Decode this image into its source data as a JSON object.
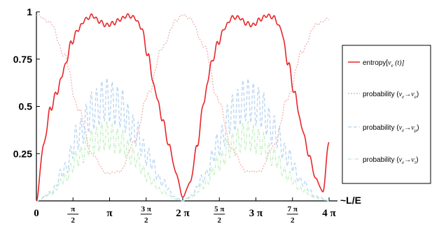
{
  "chart_data": {
    "type": "line",
    "title": "",
    "xlabel": "~L/E",
    "ylabel": "",
    "xlim": [
      0,
      12.566
    ],
    "ylim": [
      0,
      1
    ],
    "grid": false,
    "legend_position": "right",
    "y_ticks": [
      {
        "value": 0.25,
        "label": "0.25"
      },
      {
        "value": 0.5,
        "label": "0.5"
      },
      {
        "value": 0.75,
        "label": "0.75"
      },
      {
        "value": 1,
        "label": "1"
      }
    ],
    "x_ticks": [
      {
        "value": 0,
        "label": "0"
      },
      {
        "value": 1.5708,
        "num": "π",
        "den": "2"
      },
      {
        "value": 3.1416,
        "label": "π"
      },
      {
        "value": 4.7124,
        "num": "3 π",
        "den": "2"
      },
      {
        "value": 6.2832,
        "label": "2 π"
      },
      {
        "value": 7.854,
        "num": "5 π",
        "den": "2"
      },
      {
        "value": 9.4248,
        "label": "3 π"
      },
      {
        "value": 10.9956,
        "num": "7 π",
        "den": "2"
      },
      {
        "value": 12.5664,
        "label": "4 π"
      }
    ],
    "legend": [
      {
        "main": "entropy[",
        "sym": "ν",
        "sub": "e",
        "tail": "(t)]",
        "color": "#e8262a",
        "style": "solid"
      },
      {
        "main": "probability (",
        "sym": "ν",
        "sub": "e",
        "arrow": "→",
        "sym2": "ν",
        "sub2": "e",
        "tail": ")",
        "color": "#f4b4b4",
        "style": "dotted"
      },
      {
        "main": "probability (",
        "sym": "ν",
        "sub": "e",
        "arrow": "→",
        "sym2": "ν",
        "sub2": "μ",
        "tail": ")",
        "color": "#bcd8f2",
        "style": "dashed"
      },
      {
        "main": "probability (",
        "sym": "ν",
        "sub": "e",
        "arrow": "→",
        "sym2": "ν",
        "sub2": "τ",
        "tail": ")",
        "color": "#c4f0c4",
        "style": "dashdot"
      }
    ],
    "series": [
      {
        "key": "entropy",
        "color": "#e8262a",
        "x": [
          0,
          0.3,
          0.6,
          0.9,
          1.2,
          1.5,
          1.8,
          2.1,
          2.4,
          2.7,
          3.0,
          3.3,
          3.6,
          3.9,
          4.2,
          4.5,
          4.8,
          5.1,
          5.4,
          5.7,
          6.0,
          6.28,
          6.6,
          6.9,
          7.2,
          7.5,
          7.8,
          8.1,
          8.4,
          8.7,
          9.0,
          9.3,
          9.6,
          9.9,
          10.2,
          10.5,
          10.8,
          11.1,
          11.4,
          11.7,
          12.0,
          12.3,
          12.57
        ],
        "y": [
          0.0,
          0.3,
          0.5,
          0.6,
          0.72,
          0.85,
          0.92,
          0.97,
          0.99,
          0.96,
          0.94,
          0.95,
          0.97,
          0.99,
          0.98,
          0.93,
          0.78,
          0.6,
          0.45,
          0.3,
          0.15,
          0.02,
          0.1,
          0.3,
          0.55,
          0.74,
          0.85,
          0.93,
          0.98,
          0.98,
          0.95,
          0.94,
          0.97,
          0.99,
          0.98,
          0.92,
          0.75,
          0.58,
          0.4,
          0.25,
          0.12,
          0.05,
          0.33
        ]
      },
      {
        "key": "ee",
        "color": "#f4b4b4",
        "x": [
          0,
          0.6,
          1.2,
          1.8,
          2.4,
          3.0,
          3.6,
          4.2,
          4.8,
          5.4,
          6.0,
          6.28,
          6.6,
          7.2,
          7.8,
          8.4,
          9.0,
          9.6,
          10.2,
          10.8,
          11.4,
          12.0,
          12.57
        ],
        "y": [
          0.99,
          0.95,
          0.78,
          0.5,
          0.25,
          0.15,
          0.16,
          0.32,
          0.58,
          0.82,
          0.96,
          0.99,
          0.97,
          0.83,
          0.55,
          0.28,
          0.16,
          0.16,
          0.3,
          0.56,
          0.8,
          0.94,
          0.97
        ]
      },
      {
        "key": "emu",
        "color": "#bcd8f2",
        "x": [
          0,
          0.6,
          1.2,
          1.8,
          2.4,
          3.0,
          3.6,
          4.2,
          4.8,
          5.4,
          6.0,
          6.28,
          6.6,
          7.2,
          7.8,
          8.4,
          9.0,
          9.6,
          10.2,
          10.8,
          11.4,
          12.0,
          12.57
        ],
        "y": [
          0.0,
          0.05,
          0.2,
          0.42,
          0.58,
          0.65,
          0.6,
          0.45,
          0.28,
          0.12,
          0.02,
          0.0,
          0.03,
          0.15,
          0.36,
          0.56,
          0.65,
          0.6,
          0.45,
          0.28,
          0.12,
          0.03,
          0.0
        ]
      },
      {
        "key": "etau",
        "color": "#c4f0c4",
        "x": [
          0,
          0.6,
          1.2,
          1.8,
          2.4,
          3.0,
          3.6,
          4.2,
          4.8,
          5.4,
          6.0,
          6.28,
          6.6,
          7.2,
          7.8,
          8.4,
          9.0,
          9.6,
          10.2,
          10.8,
          11.4,
          12.0,
          12.57
        ],
        "y": [
          0.0,
          0.04,
          0.14,
          0.28,
          0.38,
          0.42,
          0.38,
          0.28,
          0.15,
          0.06,
          0.01,
          0.0,
          0.02,
          0.1,
          0.24,
          0.36,
          0.42,
          0.38,
          0.28,
          0.16,
          0.07,
          0.02,
          0.0
        ]
      }
    ]
  }
}
